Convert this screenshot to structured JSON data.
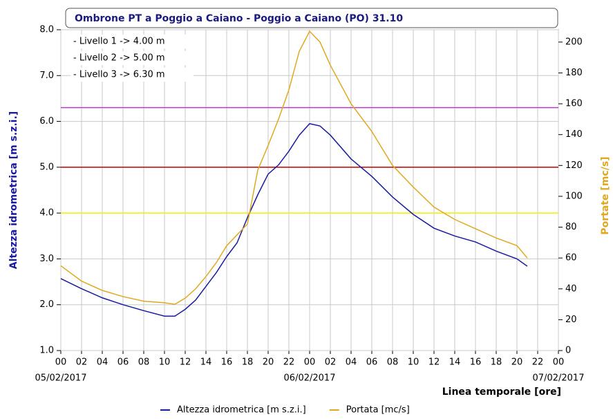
{
  "chart_data": {
    "type": "line",
    "title": "Ombrone PT a Poggio a Caiano - Poggio a Caiano (PO) 31.10",
    "y_label": "Altezza idrometrica [m s.z.i.]",
    "y2_label": "Portate [mc/s]",
    "x_label": "Linea temporale [ore]",
    "annotations": [
      "- Livello 1 -> 4.00 m",
      "- Livello 2 -> 5.00 m",
      "- Livello 3 -> 6.30 m"
    ],
    "thresholds": [
      {
        "value": 4.0,
        "color": "#f0f000"
      },
      {
        "value": 5.0,
        "color": "#c00000"
      },
      {
        "value": 6.3,
        "color": "#b040c0"
      }
    ],
    "x": [
      0,
      2,
      4,
      6,
      8,
      10,
      11,
      12,
      13,
      14,
      15,
      16,
      17,
      18,
      19,
      20,
      21,
      22,
      23,
      24,
      25,
      26,
      28,
      30,
      32,
      34,
      36,
      38,
      40,
      42,
      44,
      45
    ],
    "series": [
      {
        "name": "Altezza idrometrica [m s.z.i.]",
        "color": "#1a1aa0",
        "axis": "y",
        "values": [
          2.57,
          2.35,
          2.15,
          2.0,
          1.87,
          1.75,
          1.75,
          1.9,
          2.1,
          2.4,
          2.7,
          3.05,
          3.35,
          3.9,
          4.4,
          4.85,
          5.05,
          5.35,
          5.7,
          5.95,
          5.9,
          5.7,
          5.18,
          4.8,
          4.35,
          3.97,
          3.67,
          3.5,
          3.37,
          3.17,
          3.0,
          2.84
        ]
      },
      {
        "name": "Portata [mc/s]",
        "color": "#e0a820",
        "axis": "y2",
        "values": [
          55,
          45,
          39,
          35,
          32,
          31,
          30,
          34,
          40,
          48,
          57,
          68,
          75,
          82,
          117,
          133,
          150,
          169,
          194,
          207,
          200,
          185,
          160,
          142,
          120,
          106,
          93,
          85,
          79,
          73,
          68,
          60
        ]
      }
    ],
    "xlim": [
      0,
      48
    ],
    "xticks": [
      {
        "value": 0,
        "label": "00"
      },
      {
        "value": 2,
        "label": "02"
      },
      {
        "value": 4,
        "label": "04"
      },
      {
        "value": 6,
        "label": "06"
      },
      {
        "value": 8,
        "label": "08"
      },
      {
        "value": 10,
        "label": "10"
      },
      {
        "value": 12,
        "label": "12"
      },
      {
        "value": 14,
        "label": "14"
      },
      {
        "value": 16,
        "label": "16"
      },
      {
        "value": 18,
        "label": "18"
      },
      {
        "value": 20,
        "label": "20"
      },
      {
        "value": 22,
        "label": "22"
      },
      {
        "value": 24,
        "label": "00"
      },
      {
        "value": 26,
        "label": "02"
      },
      {
        "value": 28,
        "label": "04"
      },
      {
        "value": 30,
        "label": "06"
      },
      {
        "value": 32,
        "label": "08"
      },
      {
        "value": 34,
        "label": "10"
      },
      {
        "value": 36,
        "label": "12"
      },
      {
        "value": 38,
        "label": "14"
      },
      {
        "value": 40,
        "label": "16"
      },
      {
        "value": 42,
        "label": "18"
      },
      {
        "value": 44,
        "label": "20"
      },
      {
        "value": 46,
        "label": "22"
      },
      {
        "value": 48,
        "label": "00"
      }
    ],
    "dates": [
      {
        "value": 0,
        "label": "05/02/2017"
      },
      {
        "value": 24,
        "label": "06/02/2017"
      },
      {
        "value": 48,
        "label": "07/02/2017"
      }
    ],
    "ylim": [
      1.0,
      8.0
    ],
    "yticks": [
      {
        "value": 1,
        "label": "1.0"
      },
      {
        "value": 2,
        "label": "2.0"
      },
      {
        "value": 3,
        "label": "3.0"
      },
      {
        "value": 4,
        "label": "4.0"
      },
      {
        "value": 5,
        "label": "5.0"
      },
      {
        "value": 6,
        "label": "6.0"
      },
      {
        "value": 7,
        "label": "7.0"
      },
      {
        "value": 8,
        "label": "8.0"
      }
    ],
    "y2lim": [
      0,
      208
    ],
    "y2ticks": [
      0,
      20,
      40,
      60,
      80,
      100,
      120,
      140,
      160,
      180,
      200
    ],
    "grid": true
  }
}
